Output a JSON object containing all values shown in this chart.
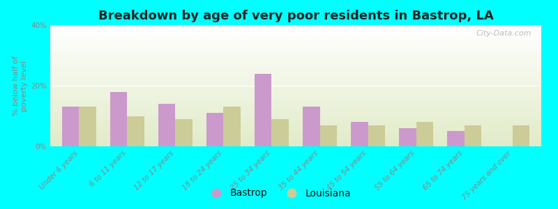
{
  "title": "Breakdown by age of very poor residents in Bastrop, LA",
  "ylabel": "% below half of\npoverty level",
  "categories": [
    "Under 6 years",
    "6 to 11 years",
    "12 to 17 years",
    "18 to 24 years",
    "25 to 34 years",
    "35 to 44 years",
    "45 to 54 years",
    "55 to 64 years",
    "65 to 74 years",
    "75 years and over"
  ],
  "bastrop": [
    13,
    18,
    14,
    11,
    24,
    13,
    8,
    6,
    5,
    0
  ],
  "louisiana": [
    13,
    10,
    9,
    13,
    9,
    7,
    7,
    8,
    7,
    7
  ],
  "bastrop_color": "#cc99cc",
  "louisiana_color": "#cccc99",
  "background_color": "#00ffff",
  "ylim": [
    0,
    40
  ],
  "yticks": [
    0,
    20,
    40
  ],
  "ytick_labels": [
    "0%",
    "20%",
    "40%"
  ],
  "bar_width": 0.35,
  "title_fontsize": 13,
  "axis_fontsize": 8,
  "tick_fontsize": 7.5,
  "legend_fontsize": 10,
  "watermark": "City-Data.com"
}
